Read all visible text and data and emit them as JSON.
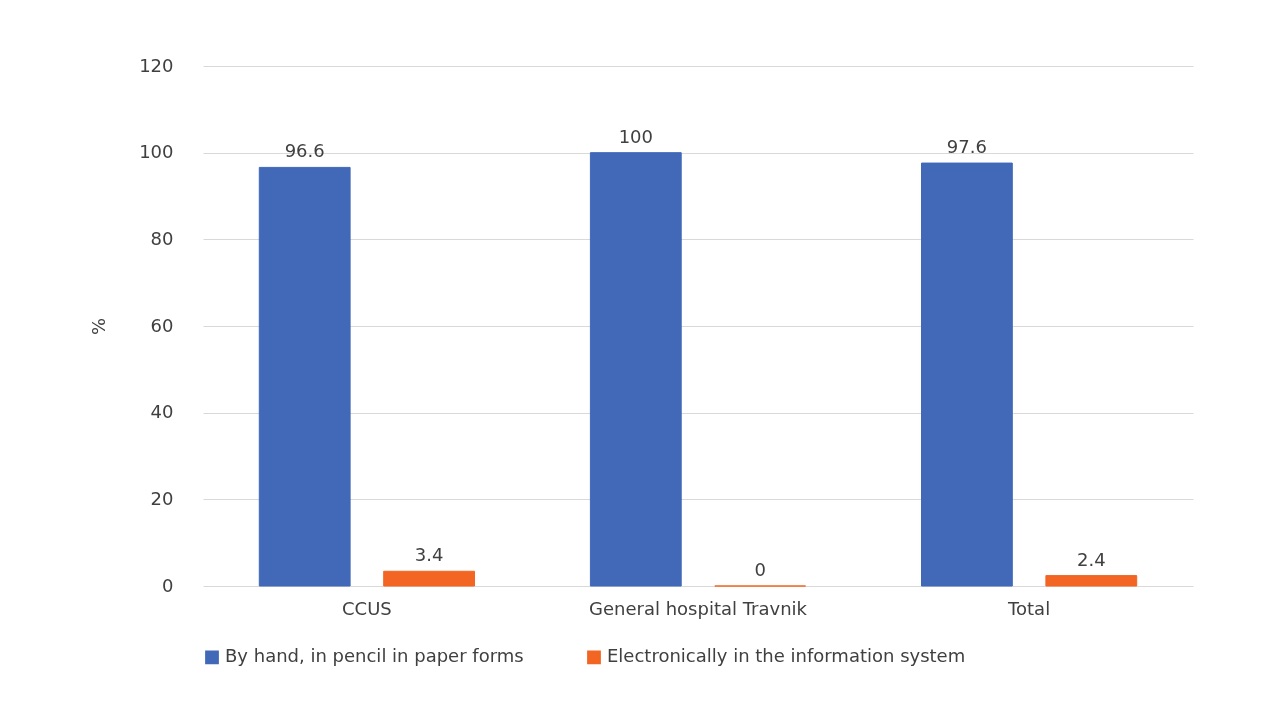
{
  "chart_data": {
    "type": "bar",
    "ylabel": "%",
    "categories": [
      "CCUS",
      "General hospital Travnik",
      "Total"
    ],
    "series": [
      {
        "name": "By hand, in pencil in paper forms",
        "color": "#4169b8",
        "values": [
          96.6,
          100,
          97.6
        ]
      },
      {
        "name": "Electronically in the information system",
        "color": "#f26522",
        "values": [
          3.4,
          0,
          2.4
        ]
      }
    ],
    "ylim": [
      0,
      120
    ],
    "yticks": [
      0,
      20,
      40,
      60,
      80,
      100,
      120
    ],
    "grid": "y",
    "legend": "bottom",
    "data_labels": true
  }
}
